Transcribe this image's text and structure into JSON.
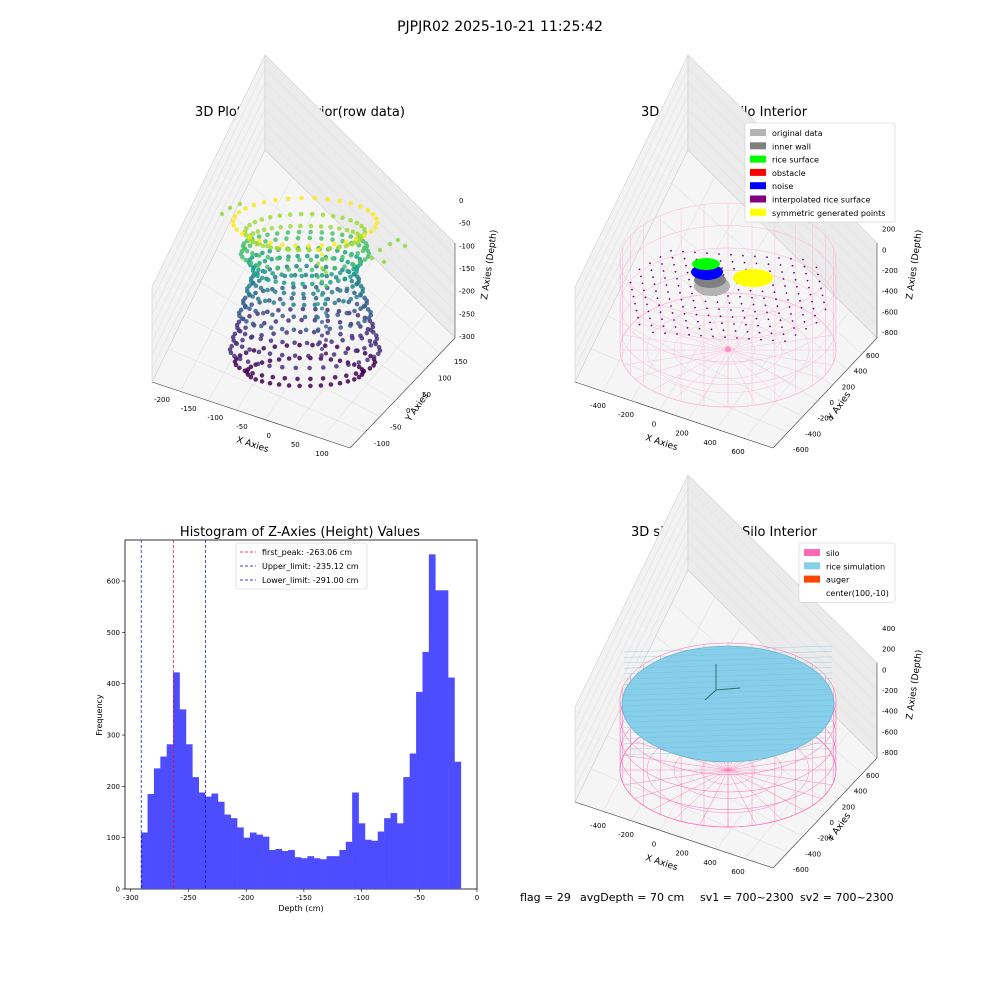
{
  "figure": {
    "suptitle": "PJPJR02 2025-10-21 11:25:42",
    "footer": {
      "flag": "flag = 29",
      "avg_depth": "avgDepth = 70 cm",
      "sv1": "sv1 = 700~2300",
      "sv2": "sv2 = 700~2300"
    }
  },
  "colors": {
    "hist_bar": "#4d4dff",
    "first_peak": "#ff0000",
    "limit_line": "#0000cc",
    "silo": "#ff69b4",
    "rice_simulation": "#87ceeb",
    "auger": "#ff4500",
    "original_data": "#b3b3b3",
    "inner_wall": "#808080",
    "rice_surface": "#00ff00",
    "obstacle": "#ff0000",
    "noise": "#0000ff",
    "interpolated_rice_surface": "#800080",
    "symmetric_generated_points": "#ffff00"
  },
  "chart_data": [
    {
      "type": "scatter",
      "title": "3D Plot of Silo Interior(row data)",
      "xlabel": "X Axies",
      "ylabel": "Y Axies",
      "zlabel": "Z Axies (Depth)",
      "x_ticks": [
        "-200",
        "-150",
        "-100",
        "-50",
        "0",
        "50",
        "100"
      ],
      "y_ticks": [
        "-100",
        "-50",
        "0",
        "50",
        "100",
        "150"
      ],
      "z_ticks": [
        "0",
        "-50",
        "-100",
        "-150",
        "-200",
        "-250",
        "-300"
      ],
      "xlim": [
        -220,
        120
      ],
      "ylim": [
        -120,
        160
      ],
      "zlim": [
        -310,
        0
      ],
      "colormap": "viridis"
    },
    {
      "type": "scatter",
      "title": "3D classify of Silo Interior",
      "xlabel": "X Axies",
      "ylabel": "Y Axies",
      "zlabel": "Z Axies (Depth)",
      "x_ticks": [
        "-400",
        "-200",
        "0",
        "200",
        "400",
        "600"
      ],
      "y_ticks": [
        "-600",
        "-400",
        "-200",
        "0",
        "200",
        "400",
        "600"
      ],
      "z_ticks": [
        "400",
        "200",
        "0",
        "-200",
        "-400",
        "-600",
        "-800"
      ],
      "legend_position": "upper-right",
      "legend": [
        {
          "label": "original data",
          "color": "#b3b3b3"
        },
        {
          "label": "inner wall",
          "color": "#808080"
        },
        {
          "label": "rice surface",
          "color": "#00ff00"
        },
        {
          "label": "obstacle",
          "color": "#ff0000"
        },
        {
          "label": "noise",
          "color": "#0000ff"
        },
        {
          "label": "interpolated rice surface",
          "color": "#800080"
        },
        {
          "label": "symmetric generated points",
          "color": "#ffff00"
        }
      ]
    },
    {
      "type": "bar",
      "title": "Histogram of Z-Axies (Height) Values",
      "xlabel": "Depth (cm)",
      "ylabel": "Frequency",
      "xlim": [
        -305,
        0
      ],
      "ylim": [
        0,
        680
      ],
      "x_ticks": [
        -300,
        -250,
        -200,
        -150,
        -100,
        -50,
        0
      ],
      "y_ticks": [
        0,
        100,
        200,
        300,
        400,
        500,
        600
      ],
      "bin_start": -291,
      "bin_width": 5.54,
      "values": [
        110,
        185,
        235,
        258,
        282,
        422,
        350,
        282,
        218,
        188,
        180,
        186,
        170,
        145,
        138,
        120,
        100,
        110,
        106,
        102,
        76,
        78,
        74,
        76,
        62,
        60,
        64,
        60,
        58,
        64,
        64,
        76,
        92,
        188,
        128,
        96,
        94,
        112,
        138,
        148,
        128,
        218,
        264,
        384,
        462,
        652,
        582,
        582,
        412,
        248
      ],
      "vlines": [
        {
          "label": "first_peak: -263.06 cm",
          "value": -263.06,
          "color": "#ff0000"
        },
        {
          "label": "Upper_limit: -235.12 cm",
          "value": -235.12,
          "color": "#0000cc"
        },
        {
          "label": "Lower_limit: -291.00 cm",
          "value": -291.0,
          "color": "#0000cc"
        }
      ],
      "legend_position": "top-center"
    },
    {
      "type": "scatter",
      "title": "3D simulation of Silo Interior",
      "xlabel": "X Axies",
      "ylabel": "Y Axies",
      "zlabel": "Z Axies (Depth)",
      "x_ticks": [
        "-400",
        "-200",
        "0",
        "200",
        "400",
        "600"
      ],
      "y_ticks": [
        "-600",
        "-400",
        "-200",
        "0",
        "200",
        "400",
        "600"
      ],
      "z_ticks": [
        "400",
        "200",
        "0",
        "-200",
        "-400",
        "-600",
        "-800"
      ],
      "legend_position": "upper-right",
      "legend": [
        {
          "label": "silo",
          "color": "#ff69b4"
        },
        {
          "label": "rice simulation",
          "color": "#87ceeb"
        },
        {
          "label": "auger",
          "color": "#ff4500"
        },
        {
          "label": "center(100,-10)",
          "color": ""
        }
      ]
    }
  ]
}
